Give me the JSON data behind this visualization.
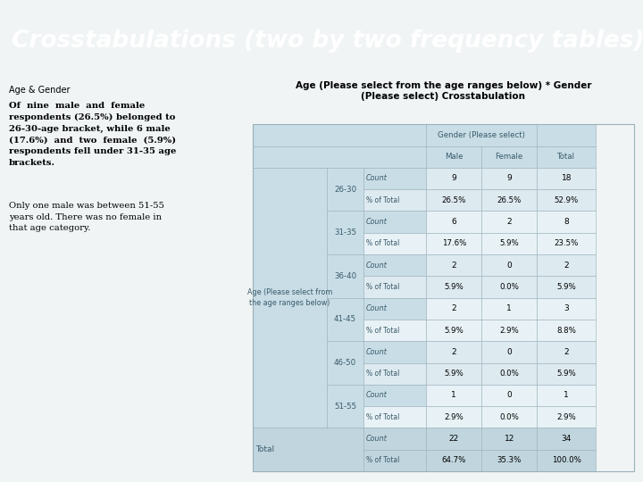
{
  "title": "Crosstabulations (two by two frequency tables)",
  "title_bg": "#87c5d6",
  "title_color": "white",
  "subtitle": "Age & Gender",
  "left_text_bold": "Of  nine  male  and  female\nrespondents (26.5%) belonged to\n26-30-age bracket, while 6 male\n(17.6%)  and  two  female  (5.9%)\nrespondents fell under 31-35 age\nbrackets.",
  "left_text_normal": "Only one male was between 51-55\nyears old. There was no female in\nthat age category.",
  "table_title_line1": "Age (Please select from the age ranges below) * Gender",
  "table_title_line2": "(Please select) Crosstabulation",
  "col_header_group": "Gender (Please select)",
  "col_headers": [
    "Male",
    "Female",
    "Total"
  ],
  "row_header_col1": "Age (Please select from\nthe age ranges below)",
  "age_ranges": [
    "26-30",
    "31-35",
    "36-40",
    "41-45",
    "46-50",
    "51-55"
  ],
  "data": {
    "26-30": {
      "Count": [
        "9",
        "9",
        "18"
      ],
      "pct": [
        "26.5%",
        "26.5%",
        "52.9%"
      ]
    },
    "31-35": {
      "Count": [
        "6",
        "2",
        "8"
      ],
      "pct": [
        "17.6%",
        "5.9%",
        "23.5%"
      ]
    },
    "36-40": {
      "Count": [
        "2",
        "0",
        "2"
      ],
      "pct": [
        "5.9%",
        "0.0%",
        "5.9%"
      ]
    },
    "41-45": {
      "Count": [
        "2",
        "1",
        "3"
      ],
      "pct": [
        "5.9%",
        "2.9%",
        "8.8%"
      ]
    },
    "46-50": {
      "Count": [
        "2",
        "0",
        "2"
      ],
      "pct": [
        "5.9%",
        "0.0%",
        "5.9%"
      ]
    },
    "51-55": {
      "Count": [
        "1",
        "0",
        "1"
      ],
      "pct": [
        "2.9%",
        "0.0%",
        "2.9%"
      ]
    }
  },
  "total_row": {
    "Count": [
      "22",
      "12",
      "34"
    ],
    "pct": [
      "64.7%",
      "35.3%",
      "100.0%"
    ]
  },
  "bg_header": "#c8dde6",
  "bg_data_even": "#ddeaf0",
  "bg_data_odd": "#e8f2f6",
  "bg_total": "#c0d5de",
  "bg_white_right": "#f5f5f5",
  "border_color": "#9ab0ba",
  "body_bg": "#f0f4f5",
  "text_color_table": "#3a5a6a"
}
